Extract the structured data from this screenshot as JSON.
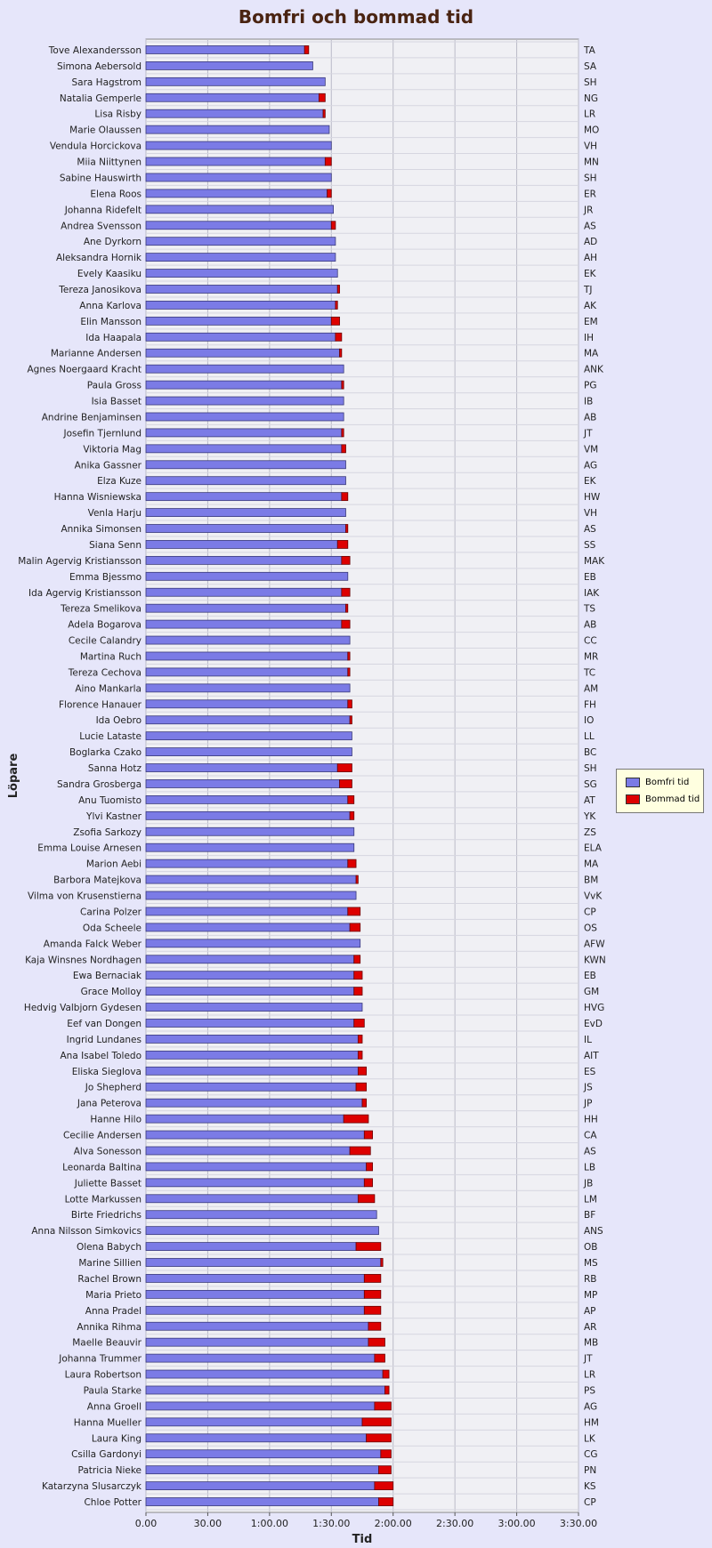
{
  "chart_data": {
    "type": "bar",
    "orientation": "horizontal",
    "stacked": true,
    "title": "Bomfri och bommad tid",
    "xlabel": "Tid",
    "ylabel": "Löpare",
    "x_unit": "minutes",
    "xlim": [
      0,
      210
    ],
    "x_ticks": [
      "0.00",
      "30.00",
      "1:00.00",
      "1:30.00",
      "2:00.00",
      "2:30.00",
      "3:00.00",
      "3:30.00"
    ],
    "grid": true,
    "legend_position": "right",
    "categories": [
      "Tove Alexandersson",
      "Simona Aebersold",
      "Sara Hagstrom",
      "Natalia Gemperle",
      "Lisa Risby",
      "Marie Olaussen",
      "Vendula Horcickova",
      "Miia Niittynen",
      "Sabine Hauswirth",
      "Elena Roos",
      "Johanna Ridefelt",
      "Andrea Svensson",
      "Ane Dyrkorn",
      "Aleksandra Hornik",
      "Evely Kaasiku",
      "Tereza Janosikova",
      "Anna Karlova",
      "Elin Mansson",
      "Ida Haapala",
      "Marianne Andersen",
      "Agnes Noergaard Kracht",
      "Paula Gross",
      "Isia Basset",
      "Andrine Benjaminsen",
      "Josefin Tjernlund",
      "Viktoria Mag",
      "Anika Gassner",
      "Elza Kuze",
      "Hanna Wisniewska",
      "Venla Harju",
      "Annika Simonsen",
      "Siana Senn",
      "Malin Agervig Kristiansson",
      "Emma Bjessmo",
      "Ida Agervig Kristiansson",
      "Tereza Smelikova",
      "Adela Bogarova",
      "Cecile Calandry",
      "Martina Ruch",
      "Tereza Cechova",
      "Aino Mankarla",
      "Florence Hanauer",
      "Ida Oebro",
      "Lucie Lataste",
      "Boglarka Czako",
      "Sanna Hotz",
      "Sandra Grosberga",
      "Anu Tuomisto",
      "Ylvi Kastner",
      "Zsofia Sarkozy",
      "Emma Louise Arnesen",
      "Marion Aebi",
      "Barbora Matejkova",
      "Vilma von Krusenstierna",
      "Carina Polzer",
      "Oda Scheele",
      "Amanda Falck Weber",
      "Kaja Winsnes Nordhagen",
      "Ewa Bernaciak",
      "Grace Molloy",
      "Hedvig Valbjorn Gydesen",
      "Eef van Dongen",
      "Ingrid Lundanes",
      "Ana Isabel Toledo",
      "Eliska Sieglova",
      "Jo Shepherd",
      "Jana Peterova",
      "Hanne Hilo",
      "Cecilie Andersen",
      "Alva Sonesson",
      "Leonarda Baltina",
      "Juliette Basset",
      "Lotte Markussen",
      "Birte Friedrichs",
      "Anna Nilsson Simkovics",
      "Olena Babych",
      "Marine Sillien",
      "Rachel Brown",
      "Maria Prieto",
      "Anna Pradel",
      "Annika Rihma",
      "Maelle Beauvir",
      "Johanna Trummer",
      "Laura Robertson",
      "Paula Starke",
      "Anna Groell",
      "Hanna Mueller",
      "Laura King",
      "Csilla Gardonyi",
      "Patricia Nieke",
      "Katarzyna Slusarczyk",
      "Chloe Potter"
    ],
    "right_labels": [
      "TA",
      "SA",
      "SH",
      "NG",
      "LR",
      "MO",
      "VH",
      "MN",
      "SH",
      "ER",
      "JR",
      "AS",
      "AD",
      "AH",
      "EK",
      "TJ",
      "AK",
      "EM",
      "IH",
      "MA",
      "ANK",
      "PG",
      "IB",
      "AB",
      "JT",
      "VM",
      "AG",
      "EK",
      "HW",
      "VH",
      "AS",
      "SS",
      "MAK",
      "EB",
      "IAK",
      "TS",
      "AB",
      "CC",
      "MR",
      "TC",
      "AM",
      "FH",
      "IO",
      "LL",
      "BC",
      "SH",
      "SG",
      "AT",
      "YK",
      "ZS",
      "ELA",
      "MA",
      "BM",
      "VvK",
      "CP",
      "OS",
      "AFW",
      "KWN",
      "EB",
      "GM",
      "HVG",
      "EvD",
      "IL",
      "AIT",
      "ES",
      "JS",
      "JP",
      "HH",
      "CA",
      "AS",
      "LB",
      "JB",
      "LM",
      "BF",
      "ANS",
      "OB",
      "MS",
      "RB",
      "MP",
      "AP",
      "AR",
      "MB",
      "JT",
      "LR",
      "PS",
      "AG",
      "HM",
      "LK",
      "CG",
      "PN",
      "KS",
      "CP"
    ],
    "series": [
      {
        "name": "Bomfri tid",
        "color": "#7b7be6",
        "values": [
          77,
          81,
          87,
          84,
          86,
          89,
          90,
          87,
          90,
          88,
          91,
          90,
          92,
          92,
          93,
          93,
          92,
          90,
          92,
          94,
          96,
          95,
          96,
          96,
          95,
          95,
          97,
          97,
          95,
          97,
          97,
          93,
          95,
          98,
          95,
          97,
          95,
          99,
          98,
          98,
          99,
          98,
          99,
          100,
          100,
          93,
          94,
          98,
          99,
          101,
          101,
          98,
          102,
          102,
          98,
          99,
          104,
          101,
          101,
          101,
          105,
          101,
          103,
          103,
          103,
          102,
          105,
          96,
          106,
          99,
          107,
          106,
          103,
          112,
          113,
          102,
          114,
          106,
          106,
          106,
          108,
          108,
          111,
          115,
          116,
          111,
          105,
          107,
          114,
          113,
          111,
          113
        ]
      },
      {
        "name": "Bommad tid",
        "color": "#dd0000",
        "values": [
          2,
          0,
          0,
          3,
          1,
          0,
          0,
          3,
          0,
          2,
          0,
          2,
          0,
          0,
          0,
          1,
          1,
          4,
          3,
          1,
          0,
          1,
          0,
          0,
          1,
          2,
          0,
          0,
          3,
          0,
          1,
          5,
          4,
          0,
          4,
          1,
          4,
          0,
          1,
          1,
          0,
          2,
          1,
          0,
          0,
          7,
          6,
          3,
          2,
          0,
          0,
          4,
          1,
          0,
          6,
          5,
          0,
          3,
          4,
          4,
          0,
          5,
          2,
          2,
          4,
          5,
          2,
          12,
          4,
          10,
          3,
          4,
          8,
          0,
          0,
          12,
          1,
          8,
          8,
          8,
          6,
          8,
          5,
          3,
          2,
          8,
          14,
          12,
          5,
          6,
          9,
          7
        ]
      }
    ]
  }
}
